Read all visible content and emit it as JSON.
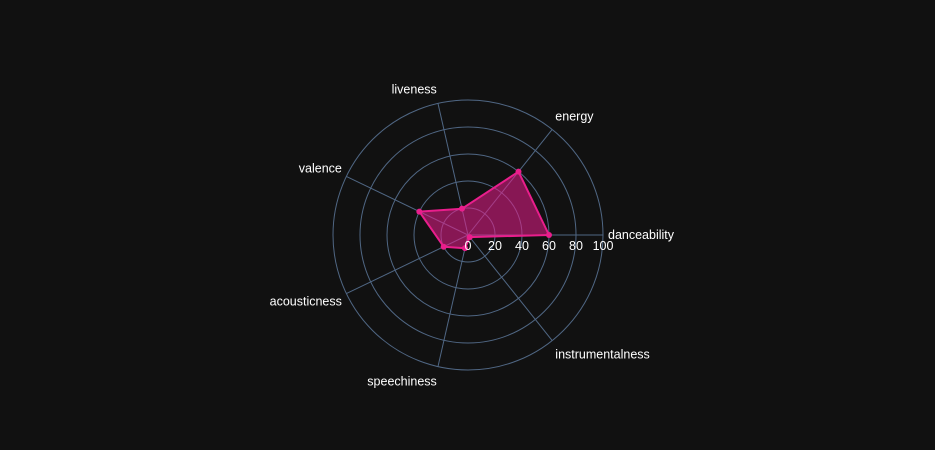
{
  "chart_data": {
    "type": "radar",
    "axes": [
      "danceability",
      "energy",
      "liveness",
      "valence",
      "acousticness",
      "speechiness",
      "instrumentalness"
    ],
    "radial_range": [
      0,
      100
    ],
    "radial_ticks": [
      "0",
      "20",
      "40",
      "60",
      "80",
      "100"
    ],
    "series": [
      {
        "values": [
          60,
          60,
          20,
          40,
          20,
          10,
          2
        ],
        "color": "#e91e8c"
      }
    ],
    "grid": true
  },
  "colors": {
    "background": "#111111",
    "grid": "#506784",
    "series_line": "#e91e8c",
    "series_fill": "rgba(233, 30, 140, 0.55)"
  }
}
